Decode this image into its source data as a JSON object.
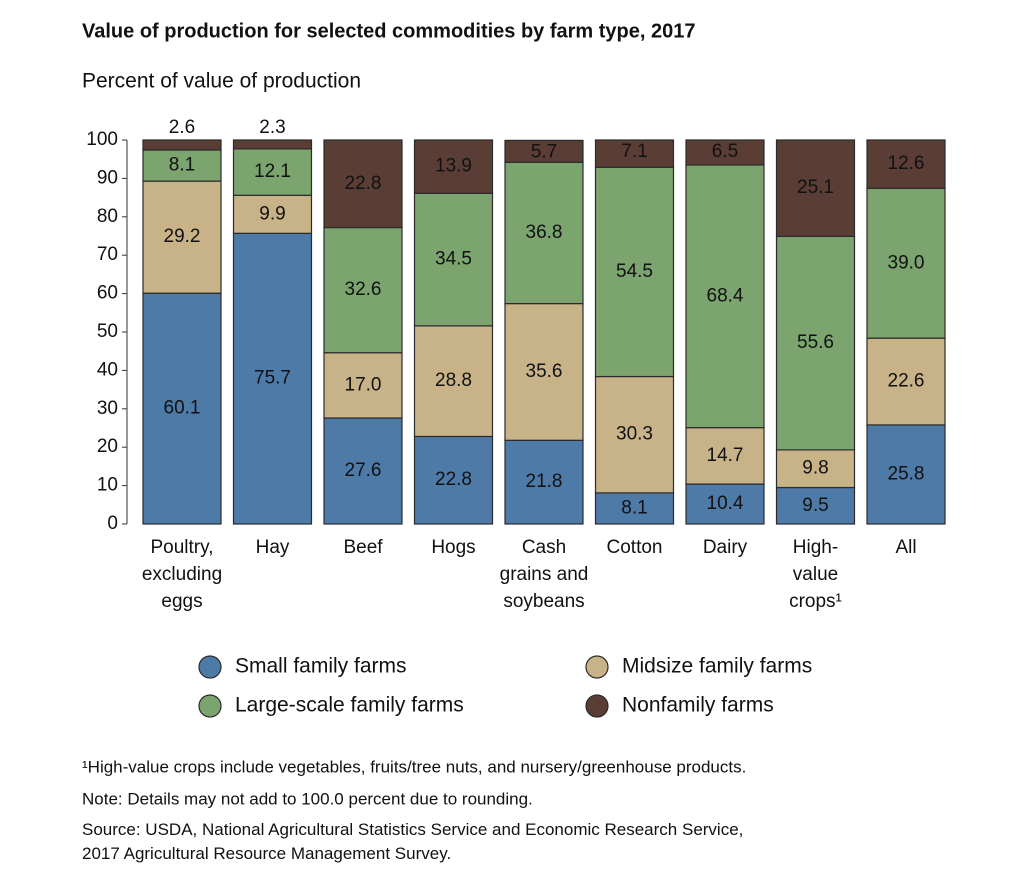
{
  "chart_data": {
    "type": "stacked-bar",
    "title": "Value of production for selected commodities by farm type, 2017",
    "subtitle": "Percent of value of production",
    "categories": [
      "Poultry,\nexcluding\neggs",
      "Hay",
      "Beef",
      "Hogs",
      "Cash\ngrains and\nsoybeans",
      "Cotton",
      "Dairy",
      "High-\nvalue\ncrops¹",
      "All"
    ],
    "series": [
      {
        "name": "Small family farms",
        "color": "#4e7aa7",
        "values": [
          60.1,
          75.7,
          27.6,
          22.8,
          21.8,
          8.1,
          10.4,
          9.5,
          25.8
        ],
        "value_labels": [
          "60.1",
          "75.7",
          "27.6",
          "22.8",
          "21.8",
          "8.1",
          "10.4",
          "9.5",
          "25.8"
        ]
      },
      {
        "name": "Midsize family farms",
        "color": "#c8b388",
        "values": [
          29.2,
          9.9,
          17.0,
          28.8,
          35.6,
          30.3,
          14.7,
          9.8,
          22.6
        ],
        "value_labels": [
          "29.2",
          "9.9",
          "17.0",
          "28.8",
          "35.6",
          "30.3",
          "14.7",
          "9.8",
          "22.6"
        ]
      },
      {
        "name": "Large-scale family farms",
        "color": "#7ba46f",
        "values": [
          8.1,
          12.1,
          32.6,
          34.5,
          36.8,
          54.5,
          68.4,
          55.6,
          39.0
        ],
        "value_labels": [
          "8.1",
          "12.1",
          "32.6",
          "34.5",
          "36.8",
          "54.5",
          "68.4",
          "55.6",
          "39.0"
        ]
      },
      {
        "name": "Nonfamily farms",
        "color": "#5a3e36",
        "values": [
          2.6,
          2.3,
          22.8,
          13.9,
          5.7,
          7.1,
          6.5,
          25.1,
          12.6
        ],
        "value_labels": [
          "2.6",
          "2.3",
          "22.8",
          "13.9",
          "5.7",
          "7.1",
          "6.5",
          "25.1",
          "12.6"
        ]
      }
    ],
    "ylim": [
      0,
      100
    ],
    "yticks": [
      0,
      10,
      20,
      30,
      40,
      50,
      60,
      70,
      80,
      90,
      100
    ],
    "grid": false,
    "footnote": "¹High-value crops include vegetables, fruits/tree nuts, and nursery/greenhouse products.",
    "note": "Note: Details may not add to 100.0 percent due to rounding.",
    "source": "Source: USDA, National Agricultural Statistics Service and Economic Research Service,\n2017 Agricultural Resource Management Survey."
  }
}
